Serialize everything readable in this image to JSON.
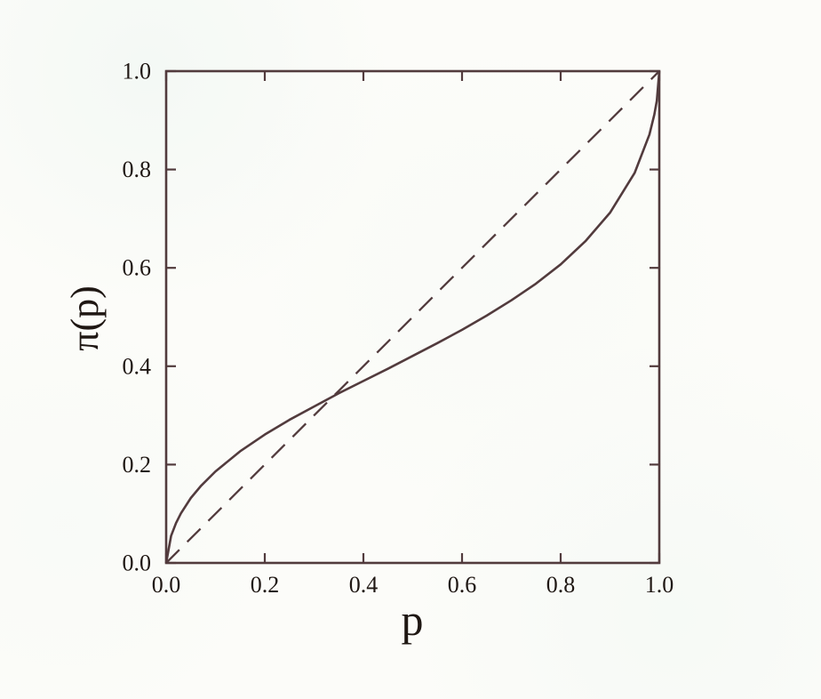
{
  "figure": {
    "kind": "scanned-journal-figure",
    "background_color": "#fcfcf9",
    "ink_color": "#523b3d",
    "text_color": "#1f1713"
  },
  "chart_data": {
    "type": "line",
    "title": "",
    "xlabel": "p",
    "ylabel": "π(p)",
    "xlim": [
      0.0,
      1.0
    ],
    "ylim": [
      0.0,
      1.0
    ],
    "grid": false,
    "legend": "none",
    "frame": "full-box",
    "tick_direction": "in",
    "x_ticks": [
      0.0,
      0.2,
      0.4,
      0.6,
      0.8,
      1.0
    ],
    "y_ticks": [
      0.0,
      0.2,
      0.4,
      0.6,
      0.8,
      1.0
    ],
    "x_tick_labels": [
      "0.0",
      "0.2",
      "0.4",
      "0.6",
      "0.8",
      "1.0"
    ],
    "y_tick_labels": [
      "0.0",
      "0.2",
      "0.4",
      "0.6",
      "0.8",
      "1.0"
    ],
    "series": [
      {
        "name": "identity-line",
        "label": "45-degree reference line",
        "style": "dashed",
        "x": [
          0.0,
          1.0
        ],
        "y": [
          0.0,
          1.0
        ]
      },
      {
        "name": "probability-weighting-curve",
        "label": "π(p) probability weighting function",
        "style": "solid",
        "x": [
          0.0,
          0.01,
          0.02,
          0.03,
          0.05,
          0.07,
          0.1,
          0.15,
          0.2,
          0.25,
          0.3,
          0.35,
          0.4,
          0.45,
          0.5,
          0.55,
          0.6,
          0.65,
          0.7,
          0.75,
          0.8,
          0.85,
          0.9,
          0.95,
          0.98,
          0.99,
          0.995,
          1.0
        ],
        "y": [
          0.0,
          0.055,
          0.081,
          0.101,
          0.132,
          0.156,
          0.186,
          0.227,
          0.261,
          0.291,
          0.318,
          0.345,
          0.37,
          0.395,
          0.421,
          0.447,
          0.474,
          0.503,
          0.534,
          0.568,
          0.607,
          0.654,
          0.712,
          0.793,
          0.871,
          0.912,
          0.94,
          1.0
        ]
      }
    ]
  }
}
